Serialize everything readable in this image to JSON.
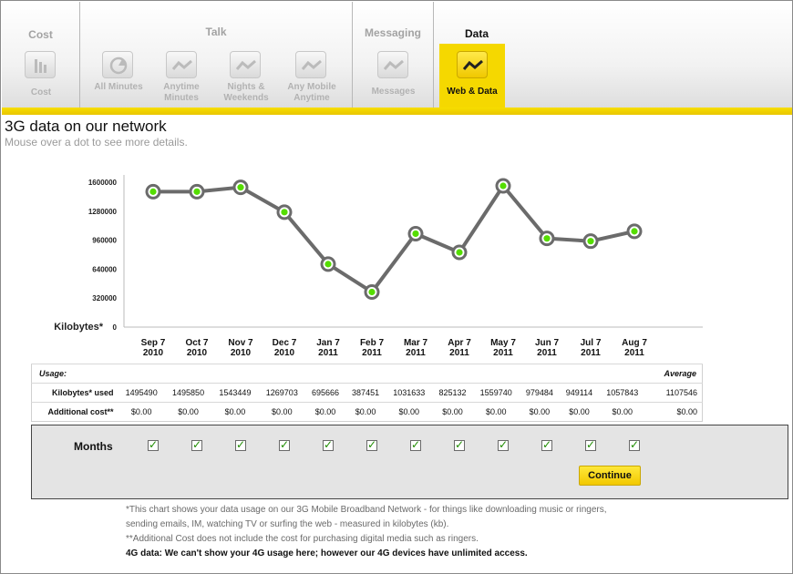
{
  "tabs": {
    "groups": [
      {
        "title": "Cost",
        "tabs": [
          {
            "label": "Cost"
          }
        ]
      },
      {
        "title": "Talk",
        "tabs": [
          {
            "label": "All Minutes"
          },
          {
            "label": "Anytime Minutes"
          },
          {
            "label": "Nights & Weekends"
          },
          {
            "label": "Any Mobile Anytime"
          }
        ]
      },
      {
        "title": "Messaging",
        "tabs": [
          {
            "label": "Messages"
          }
        ]
      },
      {
        "title": "Data",
        "tabs": [
          {
            "label": "Web & Data"
          }
        ]
      }
    ],
    "active": "Web & Data"
  },
  "heading": {
    "title": "3G data on our network",
    "subtitle": "Mouse over a dot to see more details."
  },
  "chart_data": {
    "type": "line",
    "ylabel": "Kilobytes*",
    "yticks": [
      "1600000",
      "1280000",
      "960000",
      "640000",
      "320000",
      "0"
    ],
    "ylim": [
      0,
      1600000
    ],
    "categories": [
      [
        "Sep 7",
        "2010"
      ],
      [
        "Oct 7",
        "2010"
      ],
      [
        "Nov 7",
        "2010"
      ],
      [
        "Dec 7",
        "2010"
      ],
      [
        "Jan 7",
        "2011"
      ],
      [
        "Feb 7",
        "2011"
      ],
      [
        "Mar 7",
        "2011"
      ],
      [
        "Apr 7",
        "2011"
      ],
      [
        "May 7",
        "2011"
      ],
      [
        "Jun 7",
        "2011"
      ],
      [
        "Jul 7",
        "2011"
      ],
      [
        "Aug 7",
        "2011"
      ]
    ],
    "values": [
      1495490,
      1495850,
      1543449,
      1269703,
      695666,
      387451,
      1031633,
      825132,
      1559740,
      979484,
      949114,
      1057843
    ],
    "colors": {
      "line": "#6b6b6b",
      "dot": "#55dd00",
      "ring": "#6b6b6b"
    }
  },
  "table": {
    "header": "Usage:",
    "average_header": "Average",
    "rows": [
      {
        "label": "Kilobytes* used",
        "values": [
          "1495490",
          "1495850",
          "1543449",
          "1269703",
          "695666",
          "387451",
          "1031633",
          "825132",
          "1559740",
          "979484",
          "949114",
          "1057843"
        ],
        "average": "1107546"
      },
      {
        "label": "Additional cost**",
        "values": [
          "$0.00",
          "$0.00",
          "$0.00",
          "$0.00",
          "$0.00",
          "$0.00",
          "$0.00",
          "$0.00",
          "$0.00",
          "$0.00",
          "$0.00",
          "$0.00"
        ],
        "average": "$0.00"
      }
    ]
  },
  "months": {
    "label": "Months",
    "checked": [
      true,
      true,
      true,
      true,
      true,
      true,
      true,
      true,
      true,
      true,
      true,
      true
    ],
    "check_glyph": "✓",
    "continue_label": "Continue"
  },
  "notes": [
    "*This chart shows your data usage on our 3G Mobile Broadband Network - for things like downloading music or ringers,",
    "sending emails, IM, watching TV or surfing the web - measured in kilobytes (kb).",
    "**Additional Cost does not include the cost for purchasing digital media such as ringers.",
    "4G data: We can't show your 4G usage here; however our 4G devices have unlimited access."
  ]
}
